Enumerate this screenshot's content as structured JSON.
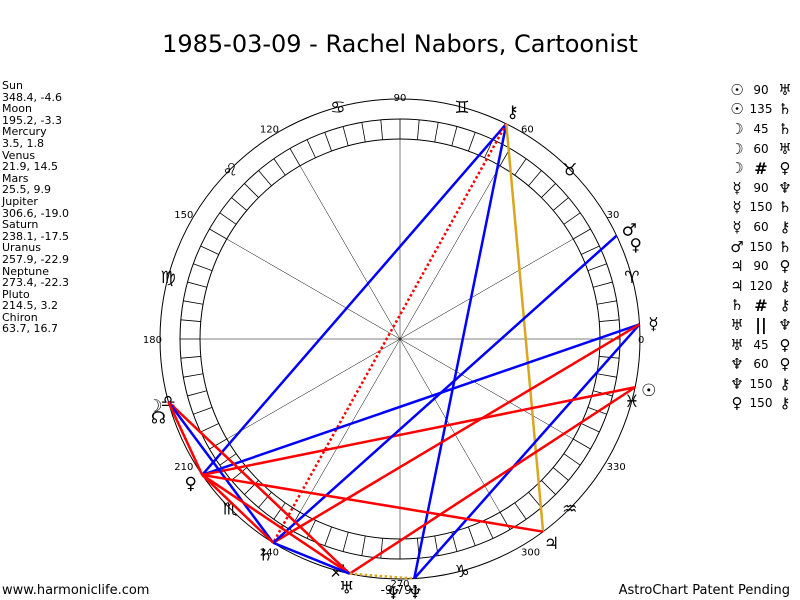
{
  "title": "1985-03-09 - Rachel Nabors, Cartoonist",
  "footer": {
    "left": "www.harmoniclife.com",
    "right": "AstroChart Patent Pending"
  },
  "planets": [
    {
      "name": "Sun",
      "coords": "348.4, -4.6",
      "glyph": "☉",
      "lon": 348.4
    },
    {
      "name": "Moon",
      "coords": "195.2, -3.3",
      "glyph": "☽",
      "lon": 195.2
    },
    {
      "name": "Mercury",
      "coords": "3.5, 1.8",
      "glyph": "☿",
      "lon": 3.5
    },
    {
      "name": "Venus",
      "coords": "21.9, 14.5",
      "glyph": "♀",
      "lon": 21.9
    },
    {
      "name": "Mars",
      "coords": "25.5, 9.9",
      "glyph": "♂",
      "lon": 25.5
    },
    {
      "name": "Jupiter",
      "coords": "306.6, -19.0",
      "glyph": "♃",
      "lon": 306.6
    },
    {
      "name": "Saturn",
      "coords": "238.1, -17.5",
      "glyph": "♄",
      "lon": 238.1
    },
    {
      "name": "Uranus",
      "coords": "257.9, -22.9",
      "glyph": "♅",
      "lon": 257.9
    },
    {
      "name": "Neptune",
      "coords": "273.4, -22.3",
      "glyph": "♆",
      "lon": 273.4
    },
    {
      "name": "Pluto",
      "coords": "214.5, 3.2",
      "glyph": "♀",
      "lon": 214.5
    },
    {
      "name": "Chiron",
      "coords": "63.7, 16.7",
      "glyph": "⚷",
      "lon": 63.7
    }
  ],
  "extra_points": [
    {
      "label": "Node",
      "glyph": "☊",
      "lon": 198.0
    },
    {
      "label": "Neptune-lower",
      "glyph": "♆",
      "lon": 268.5
    }
  ],
  "angle_labels": [
    "90",
    "60",
    "30",
    "0",
    "330",
    "300",
    "270",
    "240",
    "210",
    "180",
    "150",
    "120"
  ],
  "angle_values": [
    90,
    60,
    30,
    0,
    330,
    300,
    270,
    240,
    210,
    180,
    150,
    120
  ],
  "bottom_value": "-9,791",
  "zodiac_signs": [
    {
      "glyph": "♈",
      "lon": 15
    },
    {
      "glyph": "♉",
      "lon": 45
    },
    {
      "glyph": "♊",
      "lon": 75
    },
    {
      "glyph": "♋",
      "lon": 105
    },
    {
      "glyph": "♌",
      "lon": 135
    },
    {
      "glyph": "♍",
      "lon": 165
    },
    {
      "glyph": "♎",
      "lon": 195
    },
    {
      "glyph": "♏",
      "lon": 225
    },
    {
      "glyph": "♐",
      "lon": 255
    },
    {
      "glyph": "♑",
      "lon": 285
    },
    {
      "glyph": "♒",
      "lon": 315
    },
    {
      "glyph": "♓",
      "lon": 345
    }
  ],
  "aspects": [
    {
      "p1": "☉",
      "asp": "90",
      "p2": "♅"
    },
    {
      "p1": "☉",
      "asp": "135",
      "p2": "♄"
    },
    {
      "p1": "☽",
      "asp": "45",
      "p2": "♄"
    },
    {
      "p1": "☽",
      "asp": "60",
      "p2": "♅"
    },
    {
      "p1": "☽",
      "asp": "#",
      "p2": "♀"
    },
    {
      "p1": "☿",
      "asp": "90",
      "p2": "♆"
    },
    {
      "p1": "☿",
      "asp": "150",
      "p2": "♄"
    },
    {
      "p1": "☿",
      "asp": "60",
      "p2": "⚷"
    },
    {
      "p1": "♂",
      "asp": "150",
      "p2": "♄"
    },
    {
      "p1": "♃",
      "asp": "90",
      "p2": "♀"
    },
    {
      "p1": "♃",
      "asp": "120",
      "p2": "⚷"
    },
    {
      "p1": "♄",
      "asp": "#",
      "p2": "⚷"
    },
    {
      "p1": "♅",
      "asp": "||",
      "p2": "♆"
    },
    {
      "p1": "♅",
      "asp": "45",
      "p2": "♀"
    },
    {
      "p1": "♆",
      "asp": "60",
      "p2": "♀"
    },
    {
      "p1": "♆",
      "asp": "150",
      "p2": "⚷"
    },
    {
      "p1": "♀",
      "asp": "150",
      "p2": "⚷"
    }
  ],
  "aspect_lines": [
    {
      "from": 63.7,
      "to": 214.5,
      "color": "#0000ff",
      "style": "solid"
    },
    {
      "from": 63.7,
      "to": 273.4,
      "color": "#0000ff",
      "style": "solid"
    },
    {
      "from": 63.7,
      "to": 238.1,
      "color": "#ff0000",
      "style": "dotted"
    },
    {
      "from": 63.7,
      "to": 306.6,
      "color": "#daa520",
      "style": "solid"
    },
    {
      "from": 3.5,
      "to": 273.4,
      "color": "#0000ff",
      "style": "solid"
    },
    {
      "from": 3.5,
      "to": 214.5,
      "color": "#0000ff",
      "style": "solid"
    },
    {
      "from": 3.5,
      "to": 238.1,
      "color": "#ff0000",
      "style": "solid"
    },
    {
      "from": 348.4,
      "to": 257.9,
      "color": "#ff0000",
      "style": "solid"
    },
    {
      "from": 348.4,
      "to": 214.5,
      "color": "#ff0000",
      "style": "solid"
    },
    {
      "from": 25.5,
      "to": 238.1,
      "color": "#0000ff",
      "style": "solid"
    },
    {
      "from": 195.2,
      "to": 257.9,
      "color": "#ff0000",
      "style": "solid"
    },
    {
      "from": 195.2,
      "to": 238.1,
      "color": "#0000ff",
      "style": "solid"
    },
    {
      "from": 195.2,
      "to": 214.5,
      "color": "#ff0000",
      "style": "solid"
    },
    {
      "from": 306.6,
      "to": 214.5,
      "color": "#ff0000",
      "style": "solid"
    },
    {
      "from": 214.5,
      "to": 238.1,
      "color": "#ff0000",
      "style": "solid"
    },
    {
      "from": 214.5,
      "to": 257.9,
      "color": "#ff0000",
      "style": "solid"
    },
    {
      "from": 238.1,
      "to": 257.9,
      "color": "#0000ff",
      "style": "solid"
    },
    {
      "from": 257.9,
      "to": 273.4,
      "color": "#daa520",
      "style": "dotted"
    }
  ],
  "colors": {
    "blue": "#0000ff",
    "red": "#ff0000",
    "gold": "#daa520",
    "ink": "#000000"
  }
}
